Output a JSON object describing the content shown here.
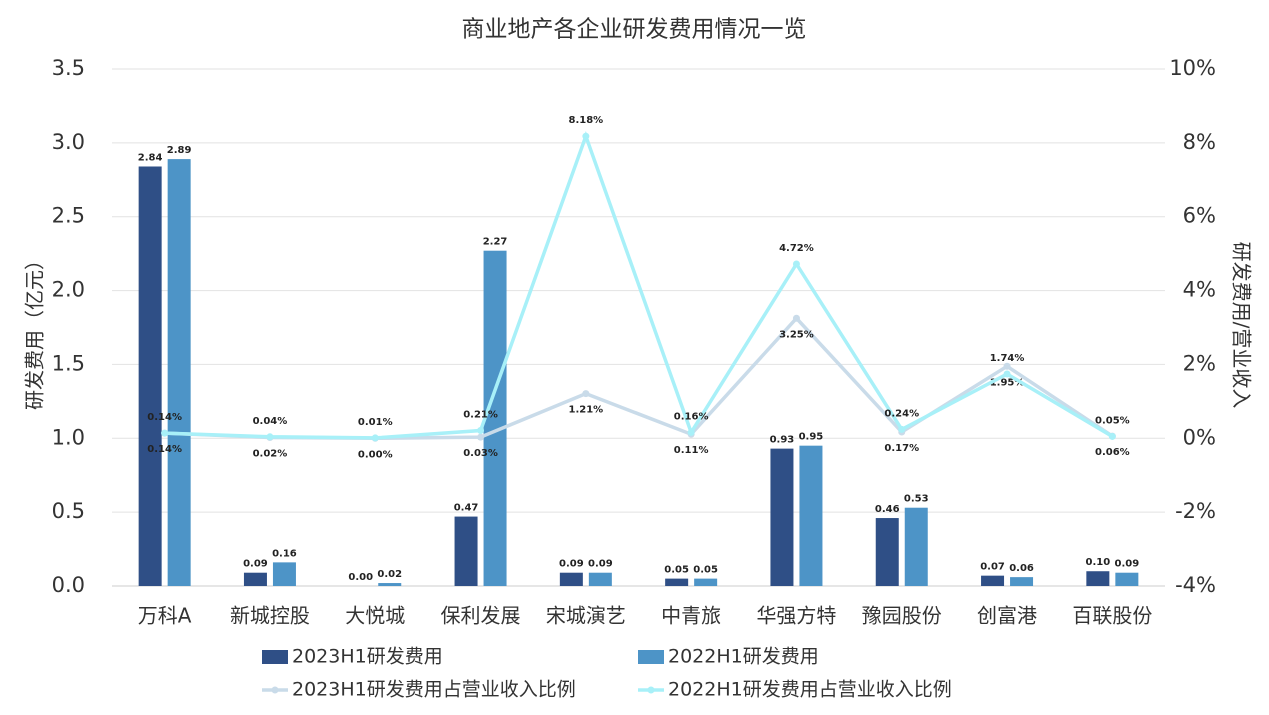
{
  "chart_data": {
    "type": "bar",
    "title": "商业地产各企业研发费用情况一览",
    "y_label": "研发费用（亿元）",
    "y2_label": "研发费用/营业收入",
    "categories": [
      "万科A",
      "新城控股",
      "大悦城",
      "保利发展",
      "宋城演艺",
      "中青旅",
      "华强方特",
      "豫园股份",
      "创富港",
      "百联股份"
    ],
    "series": [
      {
        "name": "2023H1研发费用",
        "type": "bar",
        "color": "#2f4f86",
        "values": [
          2.84,
          0.09,
          0,
          0.47,
          0.09,
          0.05,
          0.93,
          0.46,
          0.07,
          0.1
        ],
        "value_labels": [
          "2.84",
          "0.09",
          "0.00",
          "0.47",
          "0.09",
          "0.05",
          "0.93",
          "0.46",
          "0.07",
          "0.10"
        ]
      },
      {
        "name": "2022H1研发费用",
        "type": "bar",
        "color": "#4d94c7",
        "values": [
          2.89,
          0.16,
          0.02,
          2.27,
          0.09,
          0.05,
          0.95,
          0.53,
          0.06,
          0.09
        ],
        "value_labels": [
          "2.89",
          "0.16",
          "0.02",
          "2.27",
          "0.09",
          "0.05",
          "0.95",
          "0.53",
          "0.06",
          "0.09"
        ]
      },
      {
        "name": "2023H1研发费用占营业收入比例",
        "type": "line",
        "axis": "y2",
        "color": "#c9dbe9",
        "label_side": "below",
        "values": [
          0.14,
          0.02,
          0,
          0.03,
          1.21,
          0.11,
          3.25,
          0.17,
          1.95,
          0.06
        ],
        "value_labels": [
          "0.14%",
          "0.02%",
          "0.00%",
          "0.03%",
          "1.21%",
          "0.11%",
          "3.25%",
          "0.17%",
          "1.95%",
          "0.06%"
        ]
      },
      {
        "name": "2022H1研发费用占营业收入比例",
        "type": "line",
        "axis": "y2",
        "color": "#a8f0f8",
        "label_side": "above",
        "values": [
          0.14,
          0.04,
          0.01,
          0.21,
          8.18,
          0.16,
          4.72,
          0.24,
          1.74,
          0.05
        ],
        "value_labels": [
          "0.14%",
          "0.04%",
          "0.01%",
          "0.21%",
          "8.18%",
          "0.16%",
          "4.72%",
          "0.24%",
          "1.74%",
          "0.05%"
        ]
      }
    ],
    "ylim": [
      0,
      3.5
    ],
    "yticks": [
      {
        "value": 0,
        "label": "0.0"
      },
      0.5,
      {
        "value": 1,
        "label": "1.0"
      },
      1.5,
      {
        "value": 2,
        "label": "2.0"
      },
      2.5,
      {
        "value": 3,
        "label": "3.0"
      },
      3.5
    ],
    "y2lim": [
      -4,
      10
    ],
    "y2ticks": [
      {
        "value": -4,
        "label": "-4%"
      },
      {
        "value": -2,
        "label": "-2%"
      },
      {
        "value": 0,
        "label": "0%"
      },
      {
        "value": 2,
        "label": "2%"
      },
      {
        "value": 4,
        "label": "4%"
      },
      {
        "value": 6,
        "label": "6%"
      },
      {
        "value": 8,
        "label": "8%"
      },
      {
        "value": 10,
        "label": "10%"
      }
    ],
    "grid": true
  }
}
